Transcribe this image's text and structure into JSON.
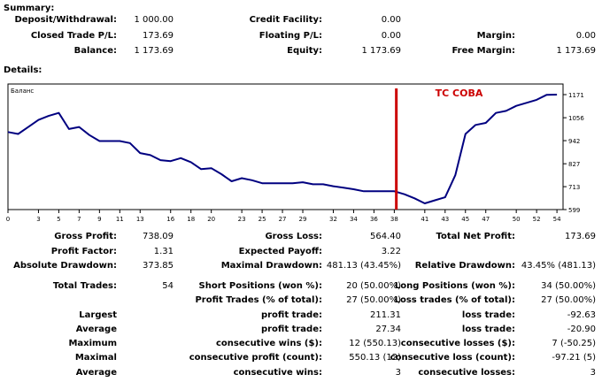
{
  "summary": {
    "title": "Summary:",
    "rows": [
      [
        {
          "label": "Deposit/Withdrawal:",
          "value": "1 000.00"
        },
        {
          "label": "Credit Facility:",
          "value": "0.00"
        },
        {
          "label": "",
          "value": ""
        }
      ],
      [
        {
          "label": "Closed Trade P/L:",
          "value": "173.69"
        },
        {
          "label": "Floating P/L:",
          "value": "0.00"
        },
        {
          "label": "Margin:",
          "value": "0.00"
        }
      ],
      [
        {
          "label": "Balance:",
          "value": "1 173.69"
        },
        {
          "label": "Equity:",
          "value": "1 173.69"
        },
        {
          "label": "Free Margin:",
          "value": "1 173.69"
        }
      ]
    ]
  },
  "details": {
    "title": "Details:"
  },
  "chart_data": {
    "type": "line",
    "label": "Баланс",
    "annotation": "ТС СОВА",
    "annotation_color": "#cc0000",
    "marker_x": 38.2,
    "line_color": "#000080",
    "x_ticks": [
      "0",
      "3",
      "5",
      "7",
      "9",
      "11",
      "13",
      "16",
      "18",
      "20",
      "23",
      "25",
      "27",
      "29",
      "32",
      "34",
      "36",
      "38",
      "41",
      "43",
      "45",
      "47",
      "50",
      "52",
      "54"
    ],
    "y_ticks": [
      "1171",
      "1056",
      "942",
      "827",
      "713",
      "599"
    ],
    "ylim": [
      599,
      1171
    ],
    "xlim": [
      0,
      54.6
    ],
    "x": [
      0,
      1,
      2,
      3,
      4,
      5,
      6,
      7,
      8,
      9,
      10,
      11,
      12,
      13,
      14,
      15,
      16,
      17,
      18,
      19,
      20,
      21,
      22,
      23,
      24,
      25,
      26,
      27,
      28,
      29,
      30,
      31,
      32,
      33,
      34,
      35,
      36,
      37,
      38,
      39,
      40,
      41,
      42,
      43,
      44,
      45,
      46,
      47,
      48,
      49,
      50,
      51,
      52,
      53,
      54
    ],
    "values": [
      985,
      975,
      1010,
      1045,
      1065,
      1080,
      1000,
      1010,
      970,
      940,
      940,
      940,
      930,
      880,
      870,
      845,
      840,
      855,
      835,
      800,
      805,
      775,
      740,
      755,
      745,
      730,
      730,
      730,
      730,
      735,
      725,
      725,
      715,
      708,
      700,
      690,
      690,
      690,
      690,
      675,
      655,
      630,
      645,
      660,
      770,
      975,
      1020,
      1030,
      1080,
      1090,
      1115,
      1130,
      1145,
      1170,
      1171
    ]
  },
  "stats": {
    "rows": [
      [
        {
          "label": "Gross Profit:",
          "value": "738.09"
        },
        {
          "label": "Gross Loss:",
          "value": "564.40"
        },
        {
          "label": "Total Net Profit:",
          "value": "173.69"
        }
      ],
      [
        {
          "label": "Profit Factor:",
          "value": "1.31"
        },
        {
          "label": "Expected Payoff:",
          "value": "3.22"
        },
        {
          "label": "",
          "value": ""
        }
      ],
      [
        {
          "label": "Absolute Drawdown:",
          "value": "373.85"
        },
        {
          "label": "Maximal Drawdown:",
          "value": "481.13 (43.45%)"
        },
        {
          "label": "Relative Drawdown:",
          "value": "43.45% (481.13)"
        }
      ]
    ],
    "trades": [
      [
        {
          "label": "Total Trades:",
          "value": "54"
        },
        {
          "label": "Short Positions (won %):",
          "value": "20 (50.00%)"
        },
        {
          "label": "Long Positions (won %):",
          "value": "34 (50.00%)"
        }
      ],
      [
        {
          "label": "",
          "value": ""
        },
        {
          "label": "Profit Trades (% of total):",
          "value": "27 (50.00%)"
        },
        {
          "label": "Loss trades (% of total):",
          "value": "27 (50.00%)"
        }
      ],
      [
        {
          "label": "Largest",
          "value": ""
        },
        {
          "label": "profit trade:",
          "value": "211.31"
        },
        {
          "label": "loss trade:",
          "value": "-92.63"
        }
      ],
      [
        {
          "label": "Average",
          "value": ""
        },
        {
          "label": "profit trade:",
          "value": "27.34"
        },
        {
          "label": "loss trade:",
          "value": "-20.90"
        }
      ],
      [
        {
          "label": "Maximum",
          "value": ""
        },
        {
          "label": "consecutive wins ($):",
          "value": "12 (550.13)"
        },
        {
          "label": "consecutive losses ($):",
          "value": "7 (-50.25)"
        }
      ],
      [
        {
          "label": "Maximal",
          "value": ""
        },
        {
          "label": "consecutive profit (count):",
          "value": "550.13 (12)"
        },
        {
          "label": "consecutive loss (count):",
          "value": "-97.21 (5)"
        }
      ],
      [
        {
          "label": "Average",
          "value": ""
        },
        {
          "label": "consecutive wins:",
          "value": "3"
        },
        {
          "label": "consecutive losses:",
          "value": "3"
        }
      ]
    ]
  }
}
